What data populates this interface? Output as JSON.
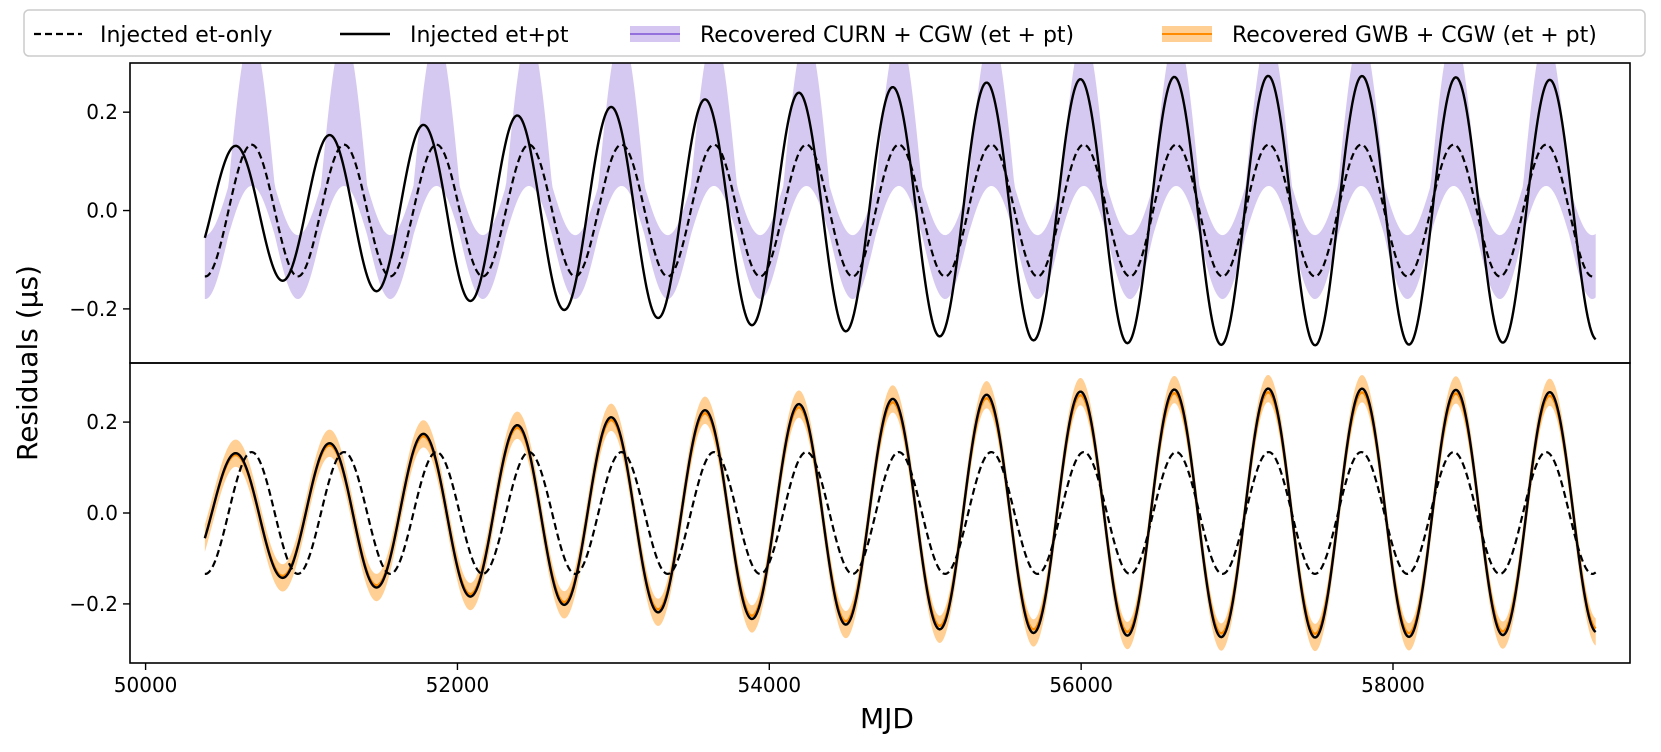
{
  "chart_data": {
    "type": "line",
    "layout": "two vertically stacked panels sharing the x axis",
    "xlabel": "MJD",
    "ylabel": "Residuals (μs)",
    "xlim": [
      49900,
      59520
    ],
    "x_ticks": [
      50000,
      52000,
      54000,
      56000,
      58000
    ],
    "x_tick_labels": [
      "50000",
      "52000",
      "54000",
      "56000",
      "58000"
    ],
    "legend": {
      "placement": "top, outside, single row",
      "entries": [
        {
          "label": "Injected et-only",
          "style": "dashed",
          "color": "#000000"
        },
        {
          "label": "Injected et+pt",
          "style": "solid",
          "color": "#000000"
        },
        {
          "label": "Recovered CURN + CGW (et + pt)",
          "style": "band",
          "color": "#9370db"
        },
        {
          "label": "Recovered GWB + CGW (et + pt)",
          "style": "band",
          "color": "#ff8c00"
        }
      ]
    },
    "signal_model": {
      "x_start": 50380,
      "x_end": 59300,
      "et_only": {
        "amplitude": 0.134,
        "period_days": 593,
        "phase_peak_mjd": 50680
      },
      "et_plus_pt": {
        "pt_amplitude_start": 0.14,
        "pt_amplitude_end": 0.14,
        "pt_period_days": 611,
        "pt_phase_peak_mjd": 50475,
        "notes": "sum of earth term and pulsar term produces beating envelope"
      }
    },
    "panels": [
      {
        "name": "CURN + CGW",
        "ylim": [
          -0.31,
          0.3
        ],
        "y_ticks": [
          -0.2,
          0.0,
          0.2
        ],
        "y_tick_labels": [
          "−0.2",
          "0.0",
          "0.2"
        ],
        "series": [
          {
            "name": "Recovered CURN + CGW (et + pt)",
            "type": "band",
            "color": "#9370db",
            "fill_opacity": 0.38,
            "tracks": "et_only",
            "band_inner_amplitude": 0.05,
            "band_outer_amplitude": 0.18
          },
          {
            "name": "Injected et-only",
            "type": "dashed",
            "color": "#000000",
            "tracks": "et_only"
          },
          {
            "name": "Injected et+pt",
            "type": "solid",
            "color": "#000000",
            "tracks": "et_plus_pt"
          }
        ]
      },
      {
        "name": "GWB + CGW",
        "ylim": [
          -0.33,
          0.33
        ],
        "y_ticks": [
          -0.2,
          0.0,
          0.2
        ],
        "y_tick_labels": [
          "−0.2",
          "0.0",
          "0.2"
        ],
        "series": [
          {
            "name": "Recovered GWB + CGW (et + pt)",
            "type": "band",
            "color": "#ff8c00",
            "fill_opacity": 0.42,
            "tracks": "et_plus_pt",
            "band_halfwidth": 0.03
          },
          {
            "name": "Recovered GWB + CGW median",
            "type": "line",
            "color": "#ff8c00",
            "tracks": "et_plus_pt"
          },
          {
            "name": "Injected et-only",
            "type": "dashed",
            "color": "#000000",
            "tracks": "et_only"
          },
          {
            "name": "Injected et+pt",
            "type": "solid",
            "color": "#000000",
            "tracks": "et_plus_pt"
          }
        ]
      }
    ]
  }
}
